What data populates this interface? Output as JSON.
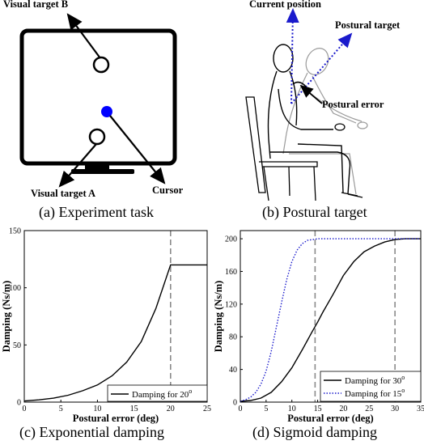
{
  "panel_a": {
    "caption": "(a) Experiment task",
    "label_target_b": "Visual target B",
    "label_target_a": "Visual target A",
    "label_cursor": "Cursor",
    "cursor_color": "#0000ff"
  },
  "panel_b": {
    "caption": "(b) Postural target",
    "label_current": "Current position",
    "label_target": "Postural target",
    "label_error": "Postural error",
    "arrow_color": "#1a1acc"
  },
  "panel_c": {
    "caption": "(c) Exponential damping"
  },
  "panel_d": {
    "caption": "(d) Sigmoid damping"
  },
  "chart_data": [
    {
      "type": "line",
      "xlabel": "Postural error (deg)",
      "ylabel": "Damping (Ns/m)",
      "xlim": [
        0,
        25
      ],
      "ylim": [
        0,
        150
      ],
      "xticks": [
        "0",
        "5",
        "10",
        "15",
        "20",
        "25"
      ],
      "yticks": [
        "0",
        "50",
        "100",
        "150"
      ],
      "vline_x": 20,
      "legend_position": "bottom-right",
      "series": [
        {
          "name": "Damping for 20",
          "name_superscript": "o",
          "color": "#000000",
          "style": "solid",
          "x": [
            0,
            2,
            4,
            6,
            8,
            10,
            12,
            14,
            16,
            18,
            20,
            21,
            25
          ],
          "values": [
            1,
            2,
            3.5,
            6,
            10,
            15,
            23,
            35,
            53,
            82,
            120,
            120,
            120
          ]
        }
      ]
    },
    {
      "type": "line",
      "xlabel": "Postural error (deg)",
      "ylabel": "Damping (Ns/m)",
      "xlim": [
        0,
        35
      ],
      "ylim": [
        0,
        210
      ],
      "xticks": [
        "0",
        "5",
        "10",
        "15",
        "20",
        "25",
        "30",
        "35"
      ],
      "yticks": [
        "0",
        "40",
        "80",
        "120",
        "160",
        "200"
      ],
      "vline_x": [
        14.5,
        30
      ],
      "legend_position": "bottom-right",
      "series": [
        {
          "name": "Damping for 30",
          "name_superscript": "o",
          "color": "#000000",
          "style": "solid",
          "x": [
            0,
            2,
            4,
            6,
            8,
            10,
            12,
            14,
            15,
            16,
            18,
            20,
            22,
            24,
            26,
            28,
            30,
            32,
            35
          ],
          "values": [
            1,
            2,
            5,
            12,
            25,
            42,
            64,
            87,
            98,
            110,
            132,
            155,
            172,
            184,
            191,
            196,
            199,
            200,
            200
          ]
        },
        {
          "name": "Damping for 15",
          "name_superscript": "o",
          "color": "#1a1acc",
          "style": "dotted",
          "x": [
            0,
            1,
            2,
            3,
            4,
            5,
            6,
            7,
            8,
            9,
            10,
            11,
            12,
            13,
            14,
            15,
            17,
            20,
            25,
            30,
            35
          ],
          "values": [
            1,
            3,
            6,
            12,
            22,
            38,
            62,
            92,
            122,
            150,
            172,
            186,
            194,
            198,
            199,
            200,
            200,
            200,
            200,
            200,
            200
          ]
        }
      ]
    }
  ]
}
